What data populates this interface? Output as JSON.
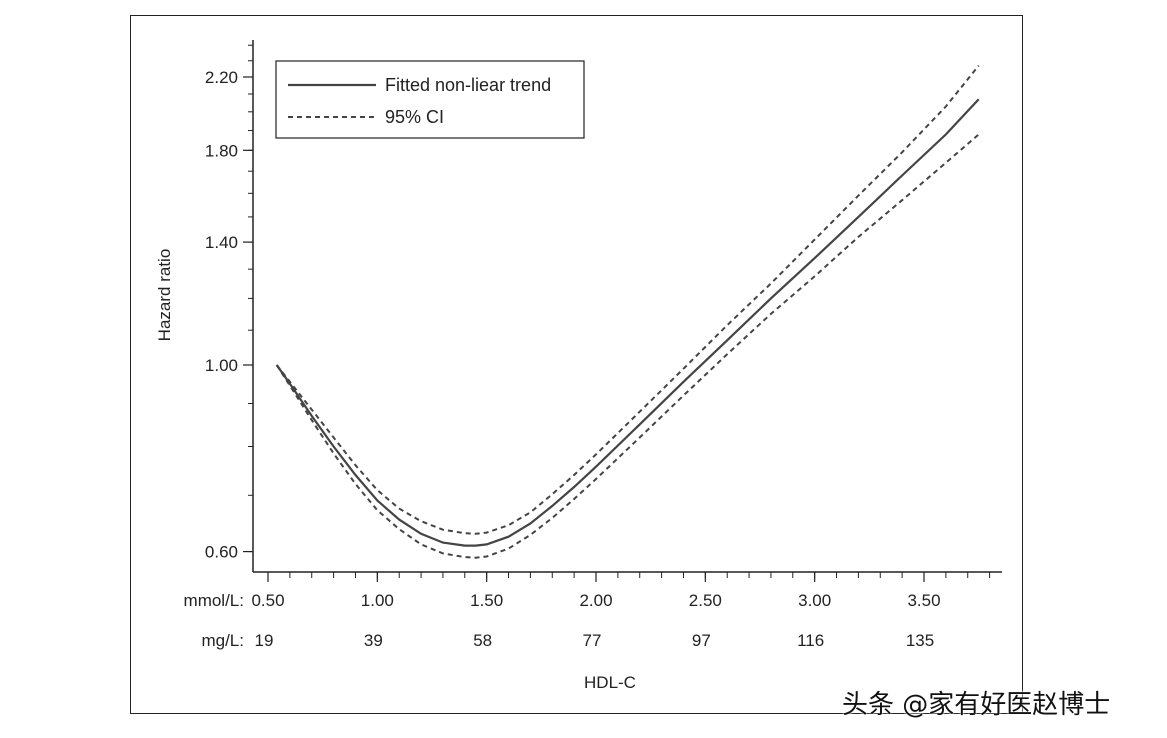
{
  "chart_data": {
    "type": "line",
    "ylabel": "Hazard ratio",
    "xlabel": "HDL-C",
    "y_scale": "log",
    "ylim": [
      0.55,
      2.45
    ],
    "y_ticks": [
      0.6,
      1.0,
      1.4,
      1.8,
      2.2
    ],
    "y_tick_labels": [
      "0.60",
      "1.00",
      "1.40",
      "1.80",
      "2.20"
    ],
    "xlim": [
      0.45,
      3.85
    ],
    "x_ticks_mmol": [
      0.5,
      1.0,
      1.5,
      2.0,
      2.5,
      3.0,
      3.5
    ],
    "x_tick_labels_mmol": [
      "0.50",
      "1.00",
      "1.50",
      "2.00",
      "2.50",
      "3.00",
      "3.50"
    ],
    "x_tick_labels_mg": [
      "19",
      "39",
      "58",
      "77",
      "97",
      "116",
      "135"
    ],
    "x_row_prefix_mmol": "mmol/L:",
    "x_row_prefix_mg": "mg/L:",
    "legend": {
      "placement": "top-left",
      "entries": [
        "Fitted non-liear trend",
        "95% CI"
      ]
    },
    "series": [
      {
        "name": "Fitted non-liear trend",
        "style": "solid",
        "x": [
          0.54,
          0.6,
          0.7,
          0.8,
          0.9,
          1.0,
          1.1,
          1.2,
          1.3,
          1.4,
          1.45,
          1.5,
          1.6,
          1.7,
          1.8,
          1.9,
          2.0,
          2.2,
          2.4,
          2.6,
          2.8,
          3.0,
          3.2,
          3.4,
          3.6,
          3.75
        ],
        "y": [
          1.0,
          0.95,
          0.87,
          0.8,
          0.74,
          0.69,
          0.655,
          0.63,
          0.615,
          0.61,
          0.61,
          0.612,
          0.625,
          0.648,
          0.68,
          0.716,
          0.757,
          0.85,
          0.955,
          1.07,
          1.2,
          1.34,
          1.5,
          1.68,
          1.88,
          2.07
        ]
      },
      {
        "name": "95% CI",
        "style": "dashed",
        "x": [
          0.54,
          0.6,
          0.7,
          0.8,
          0.9,
          1.0,
          1.1,
          1.2,
          1.3,
          1.4,
          1.45,
          1.5,
          1.6,
          1.7,
          1.8,
          1.9,
          2.0,
          2.2,
          2.4,
          2.6,
          2.8,
          3.0,
          3.2,
          3.4,
          3.6,
          3.75
        ],
        "y": [
          1.0,
          0.955,
          0.885,
          0.82,
          0.76,
          0.71,
          0.675,
          0.652,
          0.637,
          0.631,
          0.63,
          0.632,
          0.645,
          0.668,
          0.702,
          0.74,
          0.783,
          0.88,
          0.99,
          1.115,
          1.25,
          1.41,
          1.59,
          1.79,
          2.03,
          2.27
        ]
      },
      {
        "name": "95% CI",
        "style": "dashed",
        "x": [
          0.54,
          0.6,
          0.7,
          0.8,
          0.9,
          1.0,
          1.1,
          1.2,
          1.3,
          1.4,
          1.45,
          1.5,
          1.6,
          1.7,
          1.8,
          1.9,
          2.0,
          2.2,
          2.4,
          2.6,
          2.8,
          3.0,
          3.2,
          3.4,
          3.6,
          3.75
        ],
        "y": [
          1.0,
          0.945,
          0.86,
          0.785,
          0.722,
          0.672,
          0.638,
          0.612,
          0.597,
          0.591,
          0.59,
          0.592,
          0.605,
          0.628,
          0.658,
          0.693,
          0.732,
          0.82,
          0.92,
          1.03,
          1.15,
          1.275,
          1.42,
          1.57,
          1.74,
          1.88
        ]
      }
    ],
    "line_color": "#444444"
  },
  "watermark": "头条 @家有好医赵博士"
}
